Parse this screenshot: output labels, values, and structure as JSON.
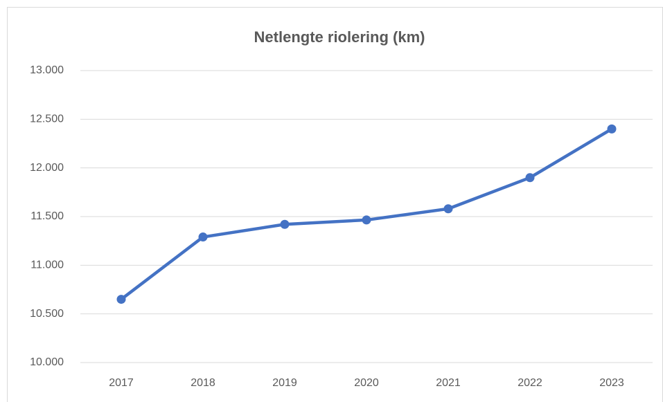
{
  "chart_data": {
    "type": "line",
    "title": "Netlengte riolering (km)",
    "categories": [
      "2017",
      "2018",
      "2019",
      "2020",
      "2021",
      "2022",
      "2023"
    ],
    "series": [
      {
        "name": "Netlengte riolering (km)",
        "color": "#4472c4",
        "values": [
          10650,
          11290,
          11420,
          11465,
          11580,
          11900,
          12400
        ]
      }
    ],
    "ylim": [
      10000,
      13000
    ],
    "yticks": [
      {
        "value": 10000,
        "label": "10.000"
      },
      {
        "value": 10500,
        "label": "10.500"
      },
      {
        "value": 11000,
        "label": "11.000"
      },
      {
        "value": 11500,
        "label": "11.500"
      },
      {
        "value": 12000,
        "label": "12.000"
      },
      {
        "value": 12500,
        "label": "12.500"
      },
      {
        "value": 13000,
        "label": "13.000"
      }
    ],
    "grid": true
  }
}
